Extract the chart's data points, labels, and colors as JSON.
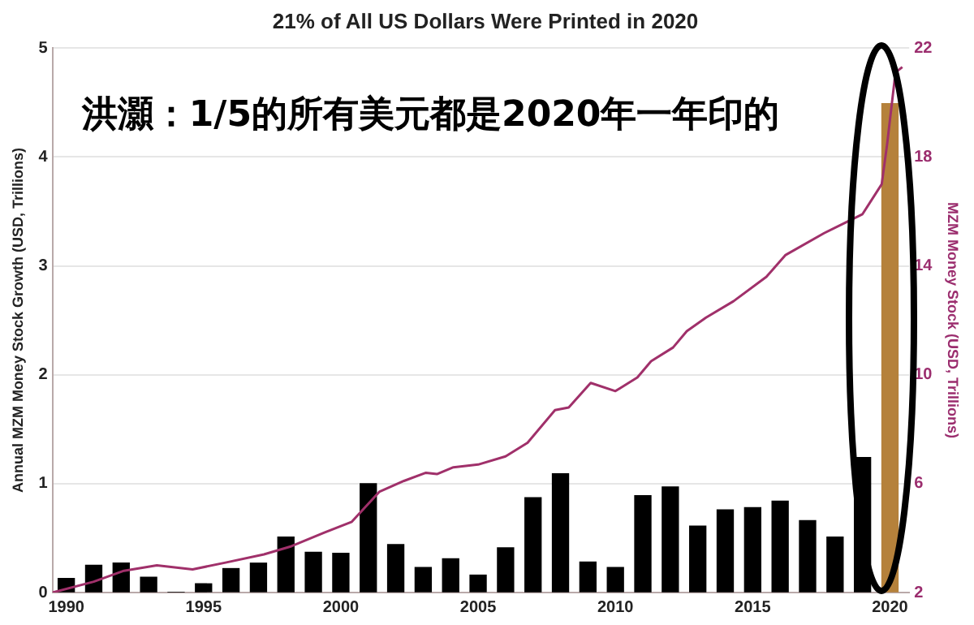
{
  "chart_data": {
    "type": "bar",
    "title": "21% of All US Dollars Were Printed in 2020",
    "ylabel": "Annual MZM Money Stock Growth (USD, Trillions)",
    "y2label": "MZM Money Stock (USD, Trillions)",
    "annotations": [
      "洪灝：1/5的所有美元都是2020年一年印的"
    ],
    "x": [
      1990,
      1991,
      1992,
      1993,
      1994,
      1995,
      1996,
      1997,
      1998,
      1999,
      2000,
      2001,
      2002,
      2003,
      2004,
      2005,
      2006,
      2007,
      2008,
      2009,
      2010,
      2011,
      2012,
      2013,
      2014,
      2015,
      2016,
      2017,
      2018,
      2019,
      2020
    ],
    "series": [
      {
        "colors": [
          "#000000",
          "#000000",
          "#000000",
          "#000000",
          "#000000",
          "#000000",
          "#000000",
          "#000000",
          "#000000",
          "#000000",
          "#000000",
          "#000000",
          "#000000",
          "#000000",
          "#000000",
          "#000000",
          "#000000",
          "#000000",
          "#000000",
          "#000000",
          "#000000",
          "#000000",
          "#000000",
          "#000000",
          "#000000",
          "#000000",
          "#000000",
          "#000000",
          "#000000",
          "#000000",
          "#b5813b"
        ],
        "values": [
          0.13,
          0.25,
          0.27,
          0.14,
          0,
          0.08,
          0.22,
          0.27,
          0.51,
          0.37,
          0.36,
          1.0,
          0.44,
          0.23,
          0.31,
          0.16,
          0.41,
          0.87,
          1.09,
          0.28,
          0.23,
          0.89,
          0.97,
          0.61,
          0.76,
          0.78,
          0.84,
          0.66,
          0.51,
          1.24,
          4.49
        ]
      },
      {
        "type": "line",
        "axis": "y2",
        "color": "#a0306a",
        "x": [
          1989.5,
          1991.0,
          1992.1,
          1993.3,
          1994.6,
          1995.8,
          1997.2,
          1998.2,
          1999.4,
          2000.4,
          2001.4,
          2002.3,
          2003.1,
          2003.5,
          2004.1,
          2005.0,
          2006.0,
          2006.8,
          2007.8,
          2008.3,
          2009.1,
          2010.0,
          2010.8,
          2011.3,
          2012.1,
          2012.6,
          2013.3,
          2014.3,
          2015.5,
          2016.2,
          2017.6,
          2018.4,
          2019.0,
          2019.7,
          2019.9,
          2020.2,
          2020.45
        ],
        "values": [
          2.0,
          2.4,
          2.8,
          3.0,
          2.85,
          3.1,
          3.4,
          3.7,
          4.2,
          4.6,
          5.7,
          6.1,
          6.4,
          6.35,
          6.6,
          6.7,
          7.0,
          7.5,
          8.7,
          8.8,
          9.7,
          9.4,
          9.9,
          10.5,
          11.0,
          11.6,
          12.1,
          12.7,
          13.6,
          14.4,
          15.2,
          15.6,
          15.9,
          17.0,
          18.5,
          21.1,
          21.3
        ]
      }
    ],
    "xlim": [
      1989.5,
      2020.7
    ],
    "xticks": [
      1990,
      1995,
      2000,
      2005,
      2010,
      2015,
      2020
    ],
    "ylim": [
      0,
      5
    ],
    "yticks": [
      0,
      1,
      2,
      3,
      4,
      5
    ],
    "y2lim": [
      2,
      22
    ],
    "y2ticks": [
      2,
      6,
      10,
      14,
      18,
      22
    ],
    "grid": "y",
    "legend": false,
    "marker": "none",
    "line_style": "solid"
  }
}
